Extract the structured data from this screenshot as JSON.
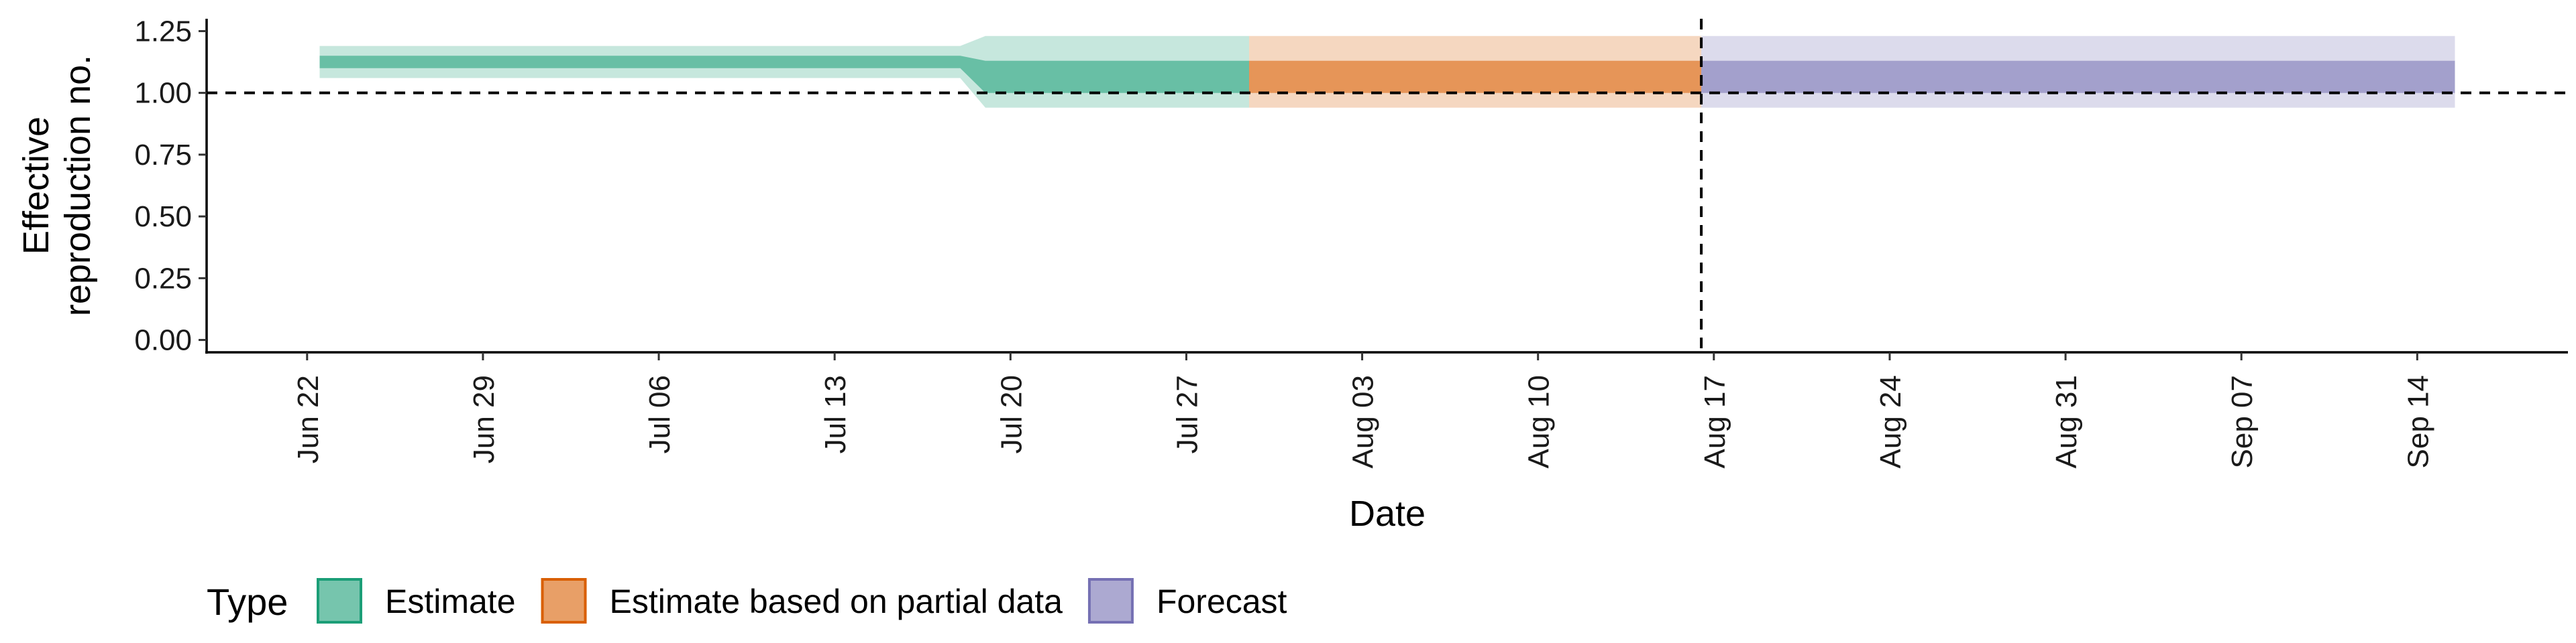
{
  "chart_data": {
    "type": "area",
    "xlabel": "Date",
    "ylabel_lines": [
      "Effective",
      "reproduction no."
    ],
    "x_range": [
      "2020-06-18",
      "2020-09-20"
    ],
    "ylim": [
      -0.05,
      1.3
    ],
    "yticks": [
      0.0,
      0.25,
      0.5,
      0.75,
      1.0,
      1.25
    ],
    "ytick_labels": [
      "0.00",
      "0.25",
      "0.50",
      "0.75",
      "1.00",
      "1.25"
    ],
    "xticks": [
      "2020-06-22",
      "2020-06-29",
      "2020-07-06",
      "2020-07-13",
      "2020-07-20",
      "2020-07-27",
      "2020-08-03",
      "2020-08-10",
      "2020-08-17",
      "2020-08-24",
      "2020-08-31",
      "2020-09-07",
      "2020-09-14"
    ],
    "xtick_labels": [
      "Jun 22",
      "Jun 29",
      "Jul 06",
      "Jul 13",
      "Jul 20",
      "Jul 27",
      "Aug 03",
      "Aug 10",
      "Aug 17",
      "Aug 24",
      "Aug 31",
      "Sep 07",
      "Sep 14"
    ],
    "reference_hline": 1.0,
    "reference_vline": "2020-08-16",
    "grid": false,
    "legend": {
      "title": "Type",
      "placement": "bottom",
      "entries": [
        "Estimate",
        "Estimate based on partial data",
        "Forecast"
      ]
    },
    "series": [
      {
        "name": "Estimate",
        "color": "#1b9e77",
        "x": [
          "2020-06-23",
          "2020-07-18",
          "2020-07-19",
          "2020-07-29"
        ],
        "inner_lower": [
          1.1,
          1.1,
          1.0,
          1.0
        ],
        "inner_upper": [
          1.15,
          1.15,
          1.13,
          1.13
        ],
        "outer_lower": [
          1.06,
          1.06,
          0.94,
          0.94
        ],
        "outer_upper": [
          1.19,
          1.19,
          1.23,
          1.23
        ]
      },
      {
        "name": "Estimate based on partial data",
        "color": "#d95f02",
        "x": [
          "2020-07-30",
          "2020-08-16"
        ],
        "inner_lower": [
          1.0,
          1.0
        ],
        "inner_upper": [
          1.13,
          1.13
        ],
        "outer_lower": [
          0.94,
          0.94
        ],
        "outer_upper": [
          1.23,
          1.23
        ]
      },
      {
        "name": "Forecast",
        "color": "#7570b3",
        "x": [
          "2020-08-17",
          "2020-09-15"
        ],
        "inner_lower": [
          1.0,
          1.0
        ],
        "inner_upper": [
          1.13,
          1.13
        ],
        "outer_lower": [
          0.94,
          0.94
        ],
        "outer_upper": [
          1.23,
          1.23
        ]
      }
    ]
  }
}
